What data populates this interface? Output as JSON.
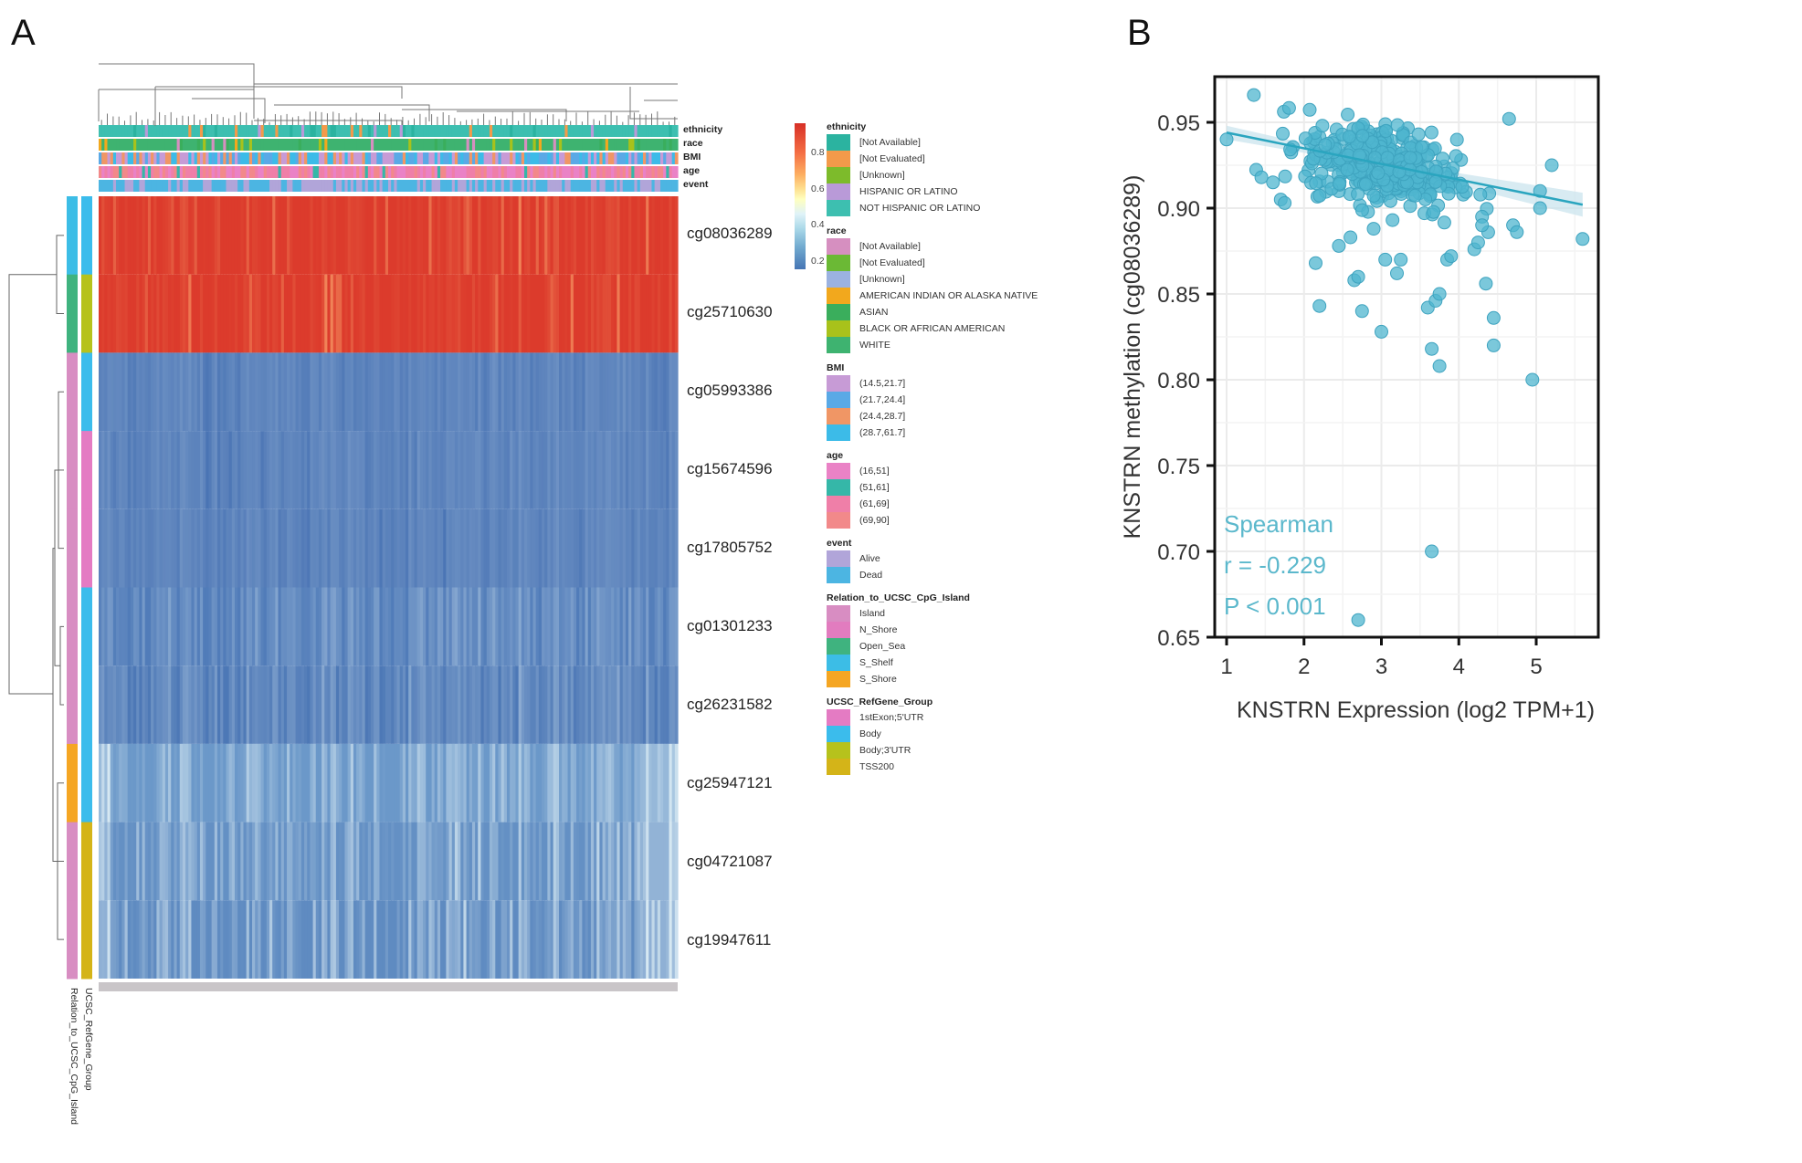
{
  "panels": {
    "a_label": "A",
    "b_label": "B"
  },
  "chart_data": [
    {
      "type": "heatmap",
      "panel": "A",
      "title": "",
      "colorbar": {
        "ticks": [
          "0.8",
          "0.6",
          "0.4",
          "0.2"
        ],
        "range": [
          0,
          1
        ],
        "colors": [
          "#4575b4",
          "#74add1",
          "#abd9e9",
          "#e0f3f8",
          "#ffffbf",
          "#fee090",
          "#fdae61",
          "#f46d43",
          "#d73027"
        ]
      },
      "rows": [
        {
          "probe": "cg08036289",
          "relation": "S_Shelf",
          "group": "Body",
          "mean_beta": 0.93,
          "base_color": "#dc3b2c"
        },
        {
          "probe": "cg25710630",
          "relation": "Open_Sea",
          "group": "Body;3'UTR",
          "mean_beta": 0.92,
          "base_color": "#dc3b2c"
        },
        {
          "probe": "cg05993386",
          "relation": "Island",
          "group": "Body",
          "mean_beta": 0.04,
          "base_color": "#4a74b4"
        },
        {
          "probe": "cg15674596",
          "relation": "Island",
          "group": "1stExon;5'UTR",
          "mean_beta": 0.04,
          "base_color": "#4a74b4"
        },
        {
          "probe": "cg17805752",
          "relation": "Island",
          "group": "1stExon;5'UTR",
          "mean_beta": 0.04,
          "base_color": "#4a74b4"
        },
        {
          "probe": "cg01301233",
          "relation": "Island",
          "group": "Body",
          "mean_beta": 0.07,
          "base_color": "#517cb9"
        },
        {
          "probe": "cg26231582",
          "relation": "Island",
          "group": "Body",
          "mean_beta": 0.06,
          "base_color": "#4d78b6"
        },
        {
          "probe": "cg25947121",
          "relation": "S_Shore",
          "group": "Body",
          "mean_beta": 0.14,
          "base_color": "#6b98c9"
        },
        {
          "probe": "cg04721087",
          "relation": "Island",
          "group": "TSS200",
          "mean_beta": 0.12,
          "base_color": "#6490c4"
        },
        {
          "probe": "cg19947611",
          "relation": "Island",
          "group": "TSS200",
          "mean_beta": 0.11,
          "base_color": "#5f8bc1"
        }
      ],
      "column_annotations": [
        "ethnicity",
        "race",
        "BMI",
        "age",
        "event"
      ],
      "row_annotation_labels": [
        "UCSC_RefGene_Group",
        "Relation_to_UCSC_CpG_Island"
      ],
      "legend": [
        {
          "title": "ethnicity",
          "items": [
            {
              "label": "[Not Available]",
              "color": "#2bb3a0"
            },
            {
              "label": "[Not Evaluated]",
              "color": "#f39a4a"
            },
            {
              "label": "[Unknown]",
              "color": "#7dbb2b"
            },
            {
              "label": "HISPANIC OR LATINO",
              "color": "#b99ad8"
            },
            {
              "label": "NOT HISPANIC OR LATINO",
              "color": "#3dbfb0"
            }
          ]
        },
        {
          "title": "race",
          "items": [
            {
              "label": "[Not Available]",
              "color": "#d68fc0"
            },
            {
              "label": "[Not Evaluated]",
              "color": "#6bb935"
            },
            {
              "label": "[Unknown]",
              "color": "#9bb2e0"
            },
            {
              "label": "AMERICAN INDIAN OR ALASKA NATIVE",
              "color": "#f2a81d"
            },
            {
              "label": "ASIAN",
              "color": "#3aae5c"
            },
            {
              "label": "BLACK OR AFRICAN AMERICAN",
              "color": "#a8c21b"
            },
            {
              "label": "WHITE",
              "color": "#3eb370"
            }
          ]
        },
        {
          "title": "BMI",
          "items": [
            {
              "label": "(14.5,21.7]",
              "color": "#c79bd6"
            },
            {
              "label": "(21.7,24.4]",
              "color": "#5aa9e6"
            },
            {
              "label": "(24.4,28.7]",
              "color": "#f09665"
            },
            {
              "label": "(28.7,61.7]",
              "color": "#3cbbe8"
            }
          ]
        },
        {
          "title": "age",
          "items": [
            {
              "label": "(16,51]",
              "color": "#ea82c6"
            },
            {
              "label": "(51,61]",
              "color": "#35b7a8"
            },
            {
              "label": "(61,69]",
              "color": "#ef7fa8"
            },
            {
              "label": "(69,90]",
              "color": "#f2898a"
            }
          ]
        },
        {
          "title": "event",
          "items": [
            {
              "label": "Alive",
              "color": "#b1a5d9"
            },
            {
              "label": "Dead",
              "color": "#4cb5e2"
            }
          ]
        },
        {
          "title": "Relation_to_UCSC_CpG_Island",
          "items": [
            {
              "label": "Island",
              "color": "#d88dc2"
            },
            {
              "label": "N_Shore",
              "color": "#e27cbf"
            },
            {
              "label": "Open_Sea",
              "color": "#3fb37f"
            },
            {
              "label": "S_Shelf",
              "color": "#3cbde6"
            },
            {
              "label": "S_Shore",
              "color": "#f5a623"
            }
          ]
        },
        {
          "title": "UCSC_RefGene_Group",
          "items": [
            {
              "label": "1stExon;5'UTR",
              "color": "#e47bc3"
            },
            {
              "label": "Body",
              "color": "#3bbcec"
            },
            {
              "label": "Body;3'UTR",
              "color": "#b6c21c"
            },
            {
              "label": "TSS200",
              "color": "#d4b418"
            }
          ]
        }
      ]
    },
    {
      "type": "scatter",
      "panel": "B",
      "title": "",
      "xlabel": "KNSTRN Expression (log2 TPM+1)",
      "ylabel": "KNSTRN methylation (cg08036289)",
      "xlim": [
        0.85,
        5.75
      ],
      "ylim": [
        0.65,
        0.975
      ],
      "xticks": [
        1,
        2,
        3,
        4,
        5
      ],
      "yticks": [
        0.65,
        0.7,
        0.75,
        0.8,
        0.85,
        0.9,
        0.95
      ],
      "ytick_labels": [
        "0.65",
        "0.70",
        "0.75",
        "0.80",
        "0.85",
        "0.90",
        "0.95"
      ],
      "grid": true,
      "point_color": "#4fb5cf",
      "fit_line": {
        "x": [
          1.0,
          5.6
        ],
        "y": [
          0.944,
          0.902
        ],
        "color": "#2aa5bf"
      },
      "annotation": [
        "Spearman",
        "r = -0.229",
        "P < 0.001"
      ],
      "stats": {
        "method": "Spearman",
        "r": -0.229,
        "p": "< 0.001"
      },
      "outlier_points": [
        [
          1.0,
          0.94
        ],
        [
          1.45,
          0.918
        ],
        [
          1.6,
          0.915
        ],
        [
          1.7,
          0.905
        ],
        [
          1.75,
          0.903
        ],
        [
          2.15,
          0.868
        ],
        [
          2.2,
          0.843
        ],
        [
          2.45,
          0.878
        ],
        [
          2.6,
          0.883
        ],
        [
          2.65,
          0.858
        ],
        [
          2.7,
          0.86
        ],
        [
          2.75,
          0.84
        ],
        [
          2.9,
          0.888
        ],
        [
          3.0,
          0.828
        ],
        [
          3.05,
          0.87
        ],
        [
          3.2,
          0.862
        ],
        [
          3.25,
          0.87
        ],
        [
          3.6,
          0.842
        ],
        [
          3.65,
          0.818
        ],
        [
          3.75,
          0.808
        ],
        [
          3.7,
          0.846
        ],
        [
          3.75,
          0.85
        ],
        [
          3.85,
          0.87
        ],
        [
          3.9,
          0.872
        ],
        [
          4.2,
          0.876
        ],
        [
          4.25,
          0.88
        ],
        [
          4.35,
          0.856
        ],
        [
          4.45,
          0.836
        ],
        [
          4.45,
          0.82
        ],
        [
          4.3,
          0.895
        ],
        [
          4.3,
          0.89
        ],
        [
          4.7,
          0.89
        ],
        [
          4.75,
          0.886
        ],
        [
          4.95,
          0.8
        ],
        [
          5.05,
          0.91
        ],
        [
          5.05,
          0.9
        ],
        [
          5.2,
          0.925
        ],
        [
          5.6,
          0.882
        ],
        [
          4.65,
          0.952
        ],
        [
          3.65,
          0.7
        ],
        [
          2.7,
          0.66
        ]
      ],
      "cluster": {
        "n": 360,
        "x_mean": 3.0,
        "x_sd": 0.65,
        "y_center_at_x1": 0.944,
        "slope": -0.0095,
        "y_sd": 0.012
      }
    }
  ],
  "heatmap_labels": {
    "probes": [
      "cg08036289",
      "cg25710630",
      "cg05993386",
      "cg15674596",
      "cg17805752",
      "cg01301233",
      "cg26231582",
      "cg25947121",
      "cg04721087",
      "cg19947611"
    ],
    "column_annotation_labels": [
      "ethnicity",
      "race",
      "BMI",
      "age",
      "event"
    ],
    "row_annotation_labels": [
      "UCSC_RefGene_Group",
      "Relation_to_UCSC_CpG_Island"
    ]
  },
  "scatter_text": {
    "xlabel": "KNSTRN Expression (log2 TPM+1)",
    "ylabel": "KNSTRN methylation (cg08036289)",
    "stat_method": "Spearman",
    "stat_r": "r = -0.229",
    "stat_p": "P < 0.001"
  }
}
